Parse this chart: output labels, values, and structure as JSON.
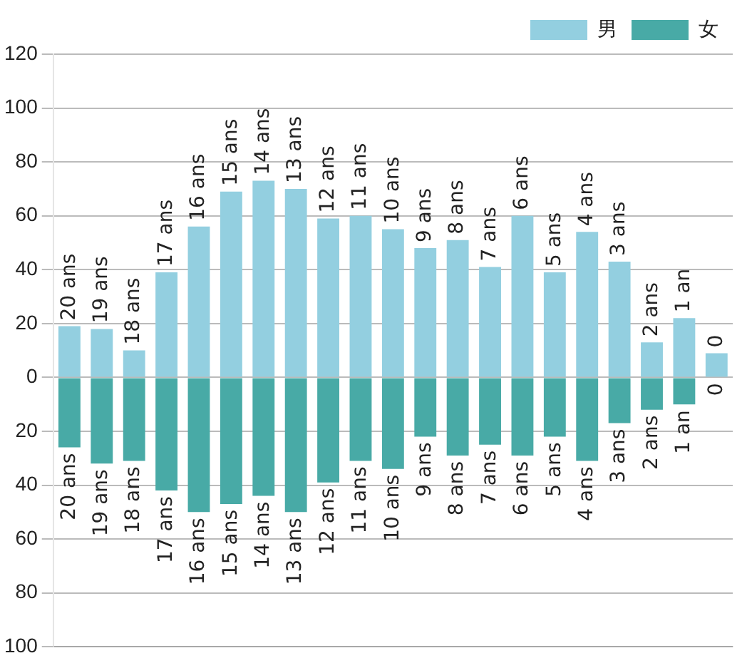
{
  "chart_data": {
    "type": "bar",
    "categories": [
      "20 ans",
      "19 ans",
      "18 ans",
      "17 ans",
      "16 ans",
      "15 ans",
      "14 ans",
      "13 ans",
      "12 ans",
      "11 ans",
      "10 ans",
      "9 ans",
      "8 ans",
      "7 ans",
      "6 ans",
      "5 ans",
      "4 ans",
      "3 ans",
      "2 ans",
      "1 an",
      "0"
    ],
    "series": [
      {
        "name": "男",
        "color": "#93cfe0",
        "values": [
          19,
          18,
          10,
          39,
          56,
          69,
          73,
          70,
          59,
          60,
          55,
          48,
          51,
          41,
          60,
          39,
          54,
          43,
          13,
          22,
          9
        ]
      },
      {
        "name": "女",
        "color": "#48aaa6",
        "values": [
          -26,
          -32,
          -31,
          -42,
          -50,
          -47,
          -44,
          -50,
          -39,
          -31,
          -34,
          -22,
          -29,
          -25,
          -29,
          -22,
          -31,
          -17,
          -12,
          -10,
          0
        ]
      }
    ],
    "stacked": true,
    "ylim": [
      -100,
      120
    ],
    "yticks": [
      {
        "value": -100,
        "label": "100"
      },
      {
        "value": -80,
        "label": "80"
      },
      {
        "value": -60,
        "label": "60"
      },
      {
        "value": -40,
        "label": "40"
      },
      {
        "value": -20,
        "label": "20"
      },
      0,
      20,
      40,
      60,
      80,
      100,
      120
    ],
    "grid": "y",
    "legend": "top right",
    "tick_labels": "y"
  }
}
